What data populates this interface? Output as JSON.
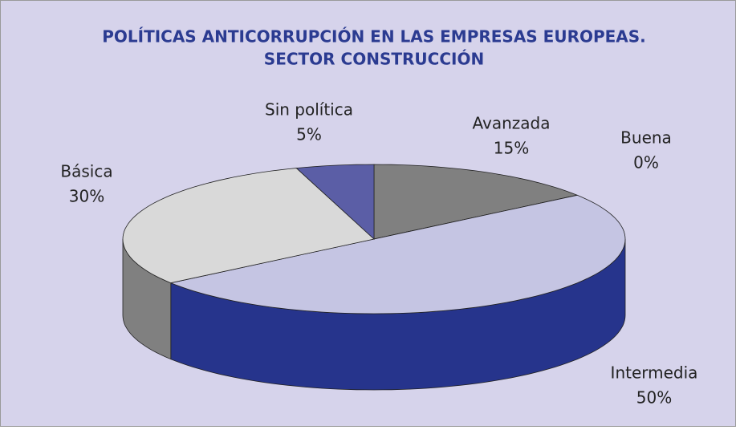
{
  "chart_data": {
    "type": "pie",
    "title": [
      "POLÍTICAS ANTICORRUPCIÓN EN LAS EMPRESAS EUROPEAS.",
      "SECTOR CONSTRUCCIÓN"
    ],
    "categories": [
      "Avanzada",
      "Buena",
      "Intermedia",
      "Básica",
      "Sin política"
    ],
    "values": [
      15,
      0,
      50,
      30,
      5
    ],
    "value_labels": [
      "15%",
      "0%",
      "50%",
      "30%",
      "5%"
    ],
    "colors": [
      "#808080",
      "#a0a0a0",
      "#c5c5e3",
      "#d9d9d9",
      "#5b5ea6"
    ],
    "side_colors": [
      "#606060",
      "#808080",
      "#26348c",
      "#808080",
      "#3d4080"
    ]
  }
}
